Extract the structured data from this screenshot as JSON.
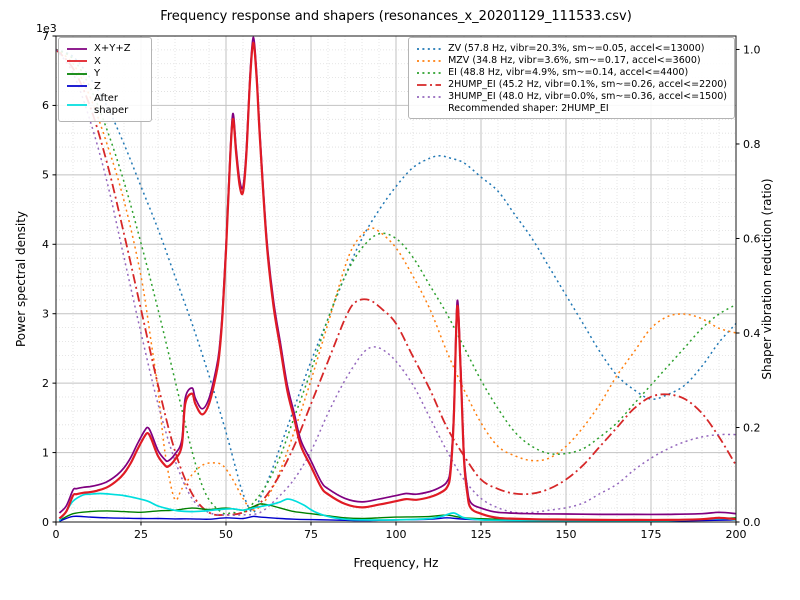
{
  "chart_data": {
    "type": "line",
    "title": "Frequency response and shapers (resonances_x_20201129_111533.csv)",
    "xlabel": "Frequency, Hz",
    "ylabel_left": "Power spectral density",
    "ylabel_right": "Shaper vibration reduction (ratio)",
    "offset_label": "1e3",
    "xlim": [
      0,
      200
    ],
    "x_major": 25,
    "x_minor": 5,
    "psd_ylim": [
      0,
      7000
    ],
    "psd_major": 1000,
    "psd_minor": 200,
    "ratio_ylim": [
      0,
      1.0285
    ],
    "ratio_ticks": [
      0,
      0.2,
      0.4,
      0.6,
      0.8,
      1.0
    ],
    "grid": true,
    "legend_left": [
      {
        "label": "X+Y+Z",
        "color": "#800080",
        "dash": "solid"
      },
      {
        "label": "X",
        "color": "#e01b24",
        "dash": "solid"
      },
      {
        "label": "Y",
        "color": "#008000",
        "dash": "solid"
      },
      {
        "label": "Z",
        "color": "#0000cc",
        "dash": "solid"
      },
      {
        "label": "After shaper",
        "color": "#00dede",
        "dash": "solid"
      }
    ],
    "legend_right": [
      {
        "label": "ZV (57.8 Hz, vibr=20.3%, sm~=0.05, accel<=13000)",
        "color": "#1f77b4",
        "dash": "dotted"
      },
      {
        "label": "MZV (34.8 Hz, vibr=3.6%, sm~=0.17, accel<=3600)",
        "color": "#ff7f0e",
        "dash": "dotted"
      },
      {
        "label": "EI (48.8 Hz, vibr=4.9%, sm~=0.14, accel<=4400)",
        "color": "#2ca02c",
        "dash": "dotted"
      },
      {
        "label": "2HUMP_EI (45.2 Hz, vibr=0.1%, sm~=0.26, accel<=2200)",
        "color": "#d62728",
        "dash": "dashdot"
      },
      {
        "label": "3HUMP_EI (48.0 Hz, vibr=0.0%, sm~=0.36, accel<=1500)",
        "color": "#9467bd",
        "dash": "dotted"
      }
    ],
    "recommendation": "Recommended shaper: 2HUMP_EI",
    "series": [
      {
        "name": "ZV",
        "axis": "ratio",
        "color": "#1f77b4",
        "dash": "dotted",
        "width": 1.5,
        "x": [
          0,
          5,
          10,
          15,
          20,
          25,
          30,
          35,
          40,
          45,
          50,
          53,
          55,
          57.8,
          60,
          63,
          66,
          70,
          75,
          80,
          85,
          90,
          95,
          100,
          105,
          110,
          113,
          116,
          120,
          125,
          130,
          135,
          140,
          145,
          150,
          155,
          160,
          165,
          170,
          175,
          180,
          185,
          190,
          195,
          200
        ],
        "y": [
          1.0,
          0.985,
          0.94,
          0.88,
          0.8,
          0.71,
          0.62,
          0.52,
          0.42,
          0.31,
          0.19,
          0.11,
          0.06,
          0.02,
          0.05,
          0.1,
          0.16,
          0.24,
          0.34,
          0.43,
          0.52,
          0.6,
          0.66,
          0.71,
          0.75,
          0.77,
          0.775,
          0.77,
          0.76,
          0.73,
          0.7,
          0.65,
          0.6,
          0.54,
          0.48,
          0.42,
          0.36,
          0.31,
          0.28,
          0.26,
          0.27,
          0.29,
          0.33,
          0.38,
          0.42
        ]
      },
      {
        "name": "MZV",
        "axis": "ratio",
        "color": "#ff7f0e",
        "dash": "dotted",
        "width": 1.5,
        "x": [
          0,
          5,
          10,
          15,
          20,
          25,
          28,
          30,
          32,
          34.8,
          37,
          40,
          43,
          46,
          49,
          52,
          55,
          58,
          62,
          66,
          70,
          75,
          80,
          85,
          88,
          92,
          95,
          100,
          105,
          110,
          115,
          120,
          125,
          130,
          135,
          140,
          145,
          150,
          155,
          160,
          165,
          170,
          175,
          180,
          185,
          190,
          195,
          200
        ],
        "y": [
          1.0,
          0.97,
          0.9,
          0.8,
          0.68,
          0.52,
          0.38,
          0.28,
          0.15,
          0.05,
          0.07,
          0.1,
          0.12,
          0.125,
          0.12,
          0.09,
          0.05,
          0.025,
          0.05,
          0.11,
          0.19,
          0.3,
          0.42,
          0.54,
          0.59,
          0.62,
          0.615,
          0.58,
          0.52,
          0.45,
          0.36,
          0.28,
          0.21,
          0.16,
          0.14,
          0.13,
          0.135,
          0.16,
          0.2,
          0.25,
          0.31,
          0.36,
          0.41,
          0.435,
          0.44,
          0.43,
          0.41,
          0.4
        ]
      },
      {
        "name": "EI",
        "axis": "ratio",
        "color": "#2ca02c",
        "dash": "dotted",
        "width": 1.5,
        "x": [
          0,
          5,
          10,
          15,
          20,
          25,
          30,
          35,
          40,
          44,
          48.8,
          52,
          55,
          58,
          62,
          66,
          70,
          75,
          80,
          85,
          90,
          95,
          100,
          105,
          110,
          115,
          120,
          125,
          130,
          135,
          140,
          145,
          150,
          155,
          160,
          165,
          170,
          175,
          180,
          185,
          190,
          195,
          200
        ],
        "y": [
          1.0,
          0.98,
          0.92,
          0.83,
          0.72,
          0.59,
          0.45,
          0.3,
          0.15,
          0.06,
          0.02,
          0.02,
          0.02,
          0.04,
          0.08,
          0.14,
          0.22,
          0.32,
          0.43,
          0.52,
          0.58,
          0.61,
          0.6,
          0.56,
          0.5,
          0.44,
          0.37,
          0.3,
          0.24,
          0.19,
          0.16,
          0.145,
          0.145,
          0.155,
          0.18,
          0.21,
          0.25,
          0.29,
          0.33,
          0.37,
          0.41,
          0.44,
          0.46
        ]
      },
      {
        "name": "2HUMP_EI",
        "axis": "ratio",
        "color": "#d62728",
        "dash": "dashdot",
        "width": 1.8,
        "x": [
          0,
          5,
          10,
          15,
          20,
          25,
          30,
          35,
          40,
          45,
          50,
          55,
          60,
          65,
          70,
          75,
          80,
          85,
          88,
          92,
          96,
          100,
          105,
          110,
          115,
          120,
          125,
          130,
          135,
          140,
          145,
          150,
          155,
          160,
          165,
          170,
          175,
          180,
          185,
          190,
          195,
          200
        ],
        "y": [
          1.0,
          0.96,
          0.88,
          0.76,
          0.61,
          0.45,
          0.29,
          0.15,
          0.06,
          0.02,
          0.015,
          0.02,
          0.04,
          0.09,
          0.16,
          0.25,
          0.34,
          0.43,
          0.465,
          0.47,
          0.45,
          0.42,
          0.35,
          0.28,
          0.2,
          0.14,
          0.09,
          0.07,
          0.06,
          0.06,
          0.07,
          0.09,
          0.12,
          0.16,
          0.2,
          0.24,
          0.265,
          0.27,
          0.26,
          0.23,
          0.18,
          0.12
        ]
      },
      {
        "name": "3HUMP_EI",
        "axis": "ratio",
        "color": "#9467bd",
        "dash": "dotted",
        "width": 1.5,
        "x": [
          0,
          5,
          10,
          15,
          20,
          25,
          30,
          35,
          40,
          45,
          50,
          55,
          60,
          65,
          70,
          75,
          80,
          85,
          90,
          93,
          96,
          100,
          105,
          110,
          115,
          120,
          125,
          130,
          135,
          140,
          145,
          150,
          155,
          160,
          165,
          170,
          175,
          180,
          185,
          190,
          195,
          200
        ],
        "y": [
          1.0,
          0.95,
          0.85,
          0.72,
          0.56,
          0.4,
          0.25,
          0.13,
          0.05,
          0.02,
          0.015,
          0.015,
          0.02,
          0.05,
          0.09,
          0.15,
          0.23,
          0.3,
          0.355,
          0.37,
          0.365,
          0.34,
          0.29,
          0.22,
          0.15,
          0.09,
          0.05,
          0.03,
          0.02,
          0.02,
          0.025,
          0.03,
          0.04,
          0.06,
          0.08,
          0.11,
          0.135,
          0.155,
          0.17,
          0.18,
          0.185,
          0.185
        ]
      },
      {
        "name": "X+Y+Z",
        "axis": "psd",
        "color": "#800080",
        "dash": "solid",
        "width": 1.7,
        "x": [
          1,
          3,
          5,
          6,
          8,
          10,
          12,
          15,
          18,
          20,
          22,
          24,
          26,
          27,
          28,
          30,
          32,
          33,
          35,
          37,
          38,
          40,
          41,
          43,
          45,
          47,
          48,
          49,
          50,
          51,
          52,
          53,
          54,
          55,
          56,
          57,
          58,
          59,
          60,
          62,
          64,
          66,
          68,
          70,
          72,
          75,
          78,
          80,
          85,
          90,
          95,
          100,
          103,
          106,
          110,
          113,
          115,
          116,
          117,
          118,
          119,
          120,
          121,
          122,
          125,
          130,
          140,
          150,
          160,
          170,
          180,
          190,
          195,
          200
        ],
        "y": [
          130,
          230,
          460,
          480,
          500,
          510,
          530,
          580,
          680,
          780,
          930,
          1130,
          1310,
          1360,
          1280,
          1030,
          900,
          880,
          980,
          1180,
          1780,
          1930,
          1780,
          1630,
          1780,
          2180,
          2480,
          3080,
          3980,
          5080,
          5880,
          5380,
          4930,
          4830,
          5380,
          6380,
          6980,
          6480,
          5580,
          4080,
          3180,
          2580,
          1980,
          1580,
          1180,
          880,
          580,
          480,
          340,
          290,
          330,
          380,
          410,
          400,
          440,
          500,
          580,
          780,
          1580,
          3180,
          2280,
          980,
          480,
          280,
          200,
          140,
          120,
          115,
          110,
          110,
          110,
          120,
          140,
          120
        ]
      },
      {
        "name": "Y",
        "axis": "psd",
        "color": "#008000",
        "dash": "solid",
        "width": 1.4,
        "x": [
          1,
          5,
          10,
          15,
          20,
          25,
          30,
          35,
          40,
          45,
          50,
          55,
          58,
          60,
          63,
          66,
          70,
          75,
          80,
          85,
          90,
          95,
          100,
          110,
          115,
          120,
          130,
          140,
          160,
          180,
          200
        ],
        "y": [
          20,
          120,
          150,
          160,
          150,
          140,
          160,
          170,
          200,
          180,
          200,
          170,
          220,
          260,
          240,
          200,
          150,
          120,
          90,
          60,
          50,
          60,
          70,
          80,
          100,
          60,
          40,
          30,
          25,
          25,
          60
        ]
      },
      {
        "name": "Z",
        "axis": "psd",
        "color": "#0000cc",
        "dash": "solid",
        "width": 1.4,
        "x": [
          1,
          5,
          10,
          15,
          20,
          25,
          30,
          35,
          40,
          45,
          50,
          55,
          58,
          60,
          63,
          66,
          70,
          75,
          80,
          85,
          90,
          95,
          100,
          110,
          115,
          120,
          130,
          140,
          160,
          180,
          200
        ],
        "y": [
          10,
          80,
          70,
          60,
          55,
          50,
          50,
          45,
          45,
          40,
          60,
          50,
          80,
          70,
          60,
          50,
          40,
          35,
          30,
          25,
          20,
          25,
          30,
          40,
          60,
          40,
          25,
          20,
          15,
          15,
          30
        ]
      },
      {
        "name": "After shaper",
        "axis": "psd",
        "color": "#00dede",
        "dash": "solid",
        "width": 1.7,
        "x": [
          1,
          3,
          5,
          8,
          10,
          13,
          16,
          20,
          24,
          27,
          30,
          33,
          36,
          40,
          44,
          48,
          52,
          55,
          58,
          61,
          64,
          66,
          68,
          70,
          73,
          76,
          80,
          85,
          90,
          100,
          110,
          114,
          117,
          120,
          125,
          130,
          140,
          150,
          160,
          180,
          195,
          200
        ],
        "y": [
          20,
          150,
          300,
          390,
          400,
          410,
          400,
          380,
          340,
          300,
          230,
          190,
          160,
          150,
          160,
          180,
          190,
          170,
          200,
          230,
          260,
          290,
          330,
          310,
          240,
          150,
          80,
          40,
          30,
          30,
          50,
          90,
          130,
          60,
          30,
          25,
          20,
          20,
          20,
          20,
          50,
          30
        ]
      },
      {
        "name": "X",
        "axis": "psd",
        "color": "#e01b24",
        "dash": "solid",
        "width": 2.2,
        "x": [
          1,
          3,
          5,
          6,
          8,
          10,
          12,
          15,
          18,
          20,
          22,
          24,
          26,
          27,
          28,
          30,
          32,
          33,
          35,
          37,
          38,
          40,
          41,
          43,
          45,
          47,
          48,
          49,
          50,
          51,
          52,
          53,
          54,
          55,
          56,
          57,
          58,
          59,
          60,
          62,
          64,
          66,
          68,
          70,
          72,
          75,
          78,
          80,
          85,
          90,
          95,
          100,
          103,
          106,
          110,
          113,
          115,
          116,
          117,
          118,
          119,
          120,
          121,
          122,
          125,
          130,
          140,
          150,
          160,
          170,
          180,
          190,
          195,
          200
        ],
        "y": [
          50,
          150,
          380,
          400,
          420,
          430,
          450,
          500,
          600,
          700,
          850,
          1050,
          1230,
          1280,
          1200,
          950,
          820,
          800,
          900,
          1100,
          1700,
          1850,
          1700,
          1550,
          1700,
          2100,
          2400,
          3000,
          3900,
          5000,
          5800,
          5300,
          4850,
          4750,
          5300,
          6300,
          6900,
          6400,
          5500,
          4000,
          3100,
          2500,
          1900,
          1500,
          1100,
          800,
          500,
          400,
          260,
          210,
          250,
          300,
          330,
          320,
          360,
          420,
          500,
          700,
          1500,
          3100,
          2200,
          900,
          400,
          200,
          120,
          60,
          40,
          35,
          30,
          30,
          30,
          40,
          60,
          40
        ]
      }
    ]
  }
}
